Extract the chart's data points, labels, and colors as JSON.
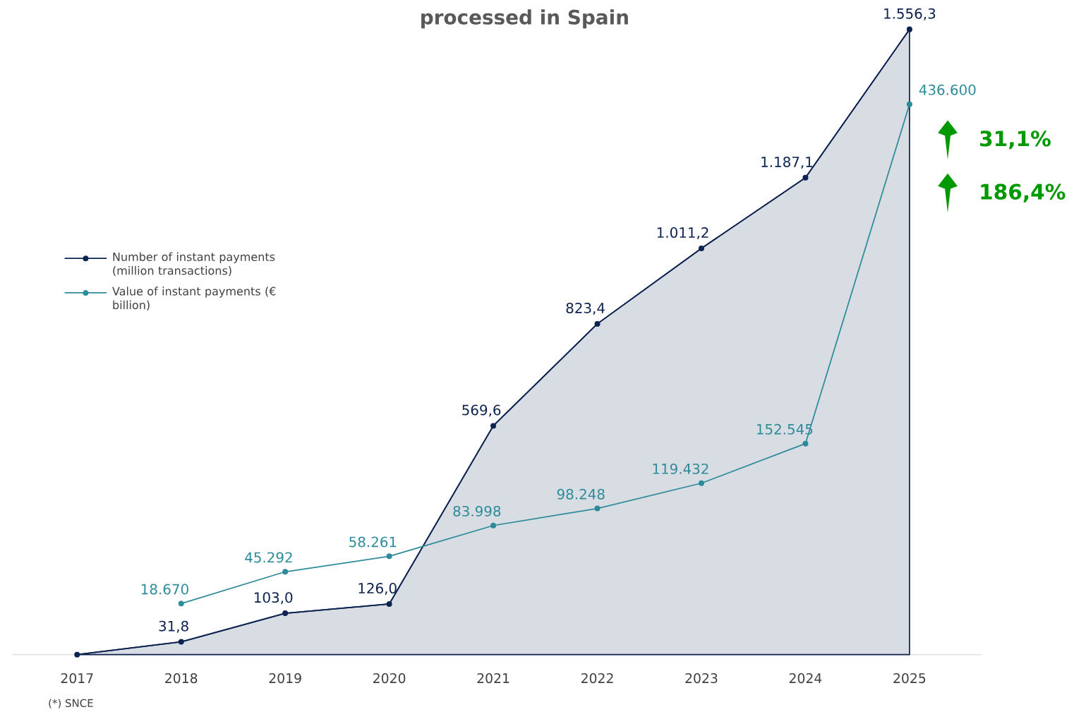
{
  "chart_data": {
    "type": "line",
    "title": "processed in Spain",
    "categories": [
      "2017",
      "2018",
      "2019",
      "2020",
      "2021",
      "2022",
      "2023",
      "2024",
      "2025"
    ],
    "series": [
      {
        "name": "Number of instant payments (million transactions)",
        "type": "area",
        "color": "#0d2350",
        "values": [
          0,
          31.8,
          103.0,
          126.0,
          569.6,
          823.4,
          1011.2,
          1187.1,
          1556.3
        ],
        "value_labels": [
          null,
          "31,8",
          "103,0",
          "126,0",
          "569,6",
          "823,4",
          "1.011,2",
          "1.187,1",
          "1.556,3"
        ]
      },
      {
        "name": "Value of instant payments (€ billion)",
        "axis": "y2",
        "color": "#2e8b9a",
        "values": [
          null,
          18670,
          45292,
          58261,
          83998,
          98248,
          119432,
          152545,
          436600
        ],
        "value_labels": [
          null,
          "18.670",
          "45.292",
          "58.261",
          "83.998",
          "98.248",
          "119.432",
          "152.545",
          "436.600"
        ]
      }
    ],
    "tick_labels": "x",
    "legend": "left",
    "marker": "circle",
    "annotations": [
      "31,1%",
      "186,4%",
      "(*) SNCE"
    ]
  }
}
